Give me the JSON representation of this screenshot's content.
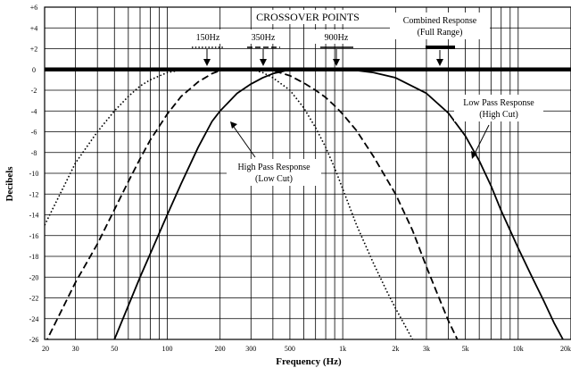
{
  "chart_data": {
    "type": "line",
    "title": "",
    "xlabel": "Frequency (Hz)",
    "ylabel": "Decibels",
    "x_scale": "log",
    "xlim": [
      20,
      20000
    ],
    "ylim": [
      -26,
      6
    ],
    "grid": true,
    "x_ticks": [
      {
        "value": 20,
        "label": "20"
      },
      {
        "value": 30,
        "label": "30"
      },
      {
        "value": 50,
        "label": "50"
      },
      {
        "value": 100,
        "label": "100"
      },
      {
        "value": 200,
        "label": "200"
      },
      {
        "value": 300,
        "label": "300"
      },
      {
        "value": 500,
        "label": "500"
      },
      {
        "value": 1000,
        "label": "1k"
      },
      {
        "value": 2000,
        "label": "2k"
      },
      {
        "value": 3000,
        "label": "3k"
      },
      {
        "value": 5000,
        "label": "5k"
      },
      {
        "value": 10000,
        "label": "10k"
      },
      {
        "value": 20000,
        "label": "20k"
      }
    ],
    "y_ticks": [
      {
        "value": 6,
        "label": "+6"
      },
      {
        "value": 4,
        "label": "+4"
      },
      {
        "value": 2,
        "label": "+2"
      },
      {
        "value": 0,
        "label": "0"
      },
      {
        "value": -2,
        "label": "-2"
      },
      {
        "value": -4,
        "label": "-4"
      },
      {
        "value": -6,
        "label": "-6"
      },
      {
        "value": -8,
        "label": "-8"
      },
      {
        "value": -10,
        "label": "-10"
      },
      {
        "value": -12,
        "label": "-12"
      },
      {
        "value": -14,
        "label": "-14"
      },
      {
        "value": -16,
        "label": "-16"
      },
      {
        "value": -18,
        "label": "-18"
      },
      {
        "value": -20,
        "label": "-20"
      },
      {
        "value": -22,
        "label": "-22"
      },
      {
        "value": -24,
        "label": "-24"
      },
      {
        "value": -26,
        "label": "-26"
      }
    ],
    "series": [
      {
        "style": "dotted",
        "x": [
          20,
          30,
          40,
          50,
          60,
          70,
          80,
          100,
          125,
          150,
          180,
          220,
          260,
          300,
          350,
          400,
          500,
          600,
          700,
          800,
          900,
          1000,
          1200,
          1500,
          1800,
          2000,
          2500,
          3000
        ],
        "y": [
          -15,
          -9,
          -6,
          -4,
          -2.6,
          -1.6,
          -1,
          -0.3,
          0,
          0,
          0,
          0,
          0,
          0,
          -0.3,
          -0.8,
          -2,
          -3.7,
          -5.6,
          -7.5,
          -9.5,
          -11.5,
          -15,
          -18.7,
          -21.5,
          -23,
          -26,
          -28
        ]
      },
      {
        "style": "dashed",
        "x": [
          20,
          30,
          40,
          50,
          60,
          70,
          80,
          100,
          120,
          150,
          180,
          200,
          250,
          300,
          350,
          400,
          500,
          600,
          700,
          800,
          900,
          1000,
          1200,
          1500,
          2000,
          2500,
          3000,
          3500,
          4000,
          4500
        ],
        "y": [
          -26.5,
          -20.5,
          -16.8,
          -13.5,
          -10.8,
          -8.6,
          -6.8,
          -4.3,
          -2.6,
          -1.2,
          -0.4,
          -0.1,
          0,
          0,
          0,
          -0.1,
          -0.6,
          -1.3,
          -2,
          -2.7,
          -3.5,
          -4.3,
          -5.9,
          -8.4,
          -12,
          -15.5,
          -19,
          -21.8,
          -24.2,
          -26
        ]
      },
      {
        "style": "solid",
        "x": [
          50,
          70,
          100,
          120,
          150,
          180,
          200,
          250,
          300,
          350,
          400,
          450,
          500,
          550,
          600,
          700,
          800,
          1000,
          1200,
          1500,
          2000,
          3000,
          4000,
          5000,
          6000,
          7000,
          8000,
          10000,
          12000,
          14000,
          16000,
          18000,
          20000
        ],
        "y": [
          -26,
          -20,
          -14,
          -11,
          -7.5,
          -5,
          -4,
          -2.3,
          -1.4,
          -0.8,
          -0.4,
          -0.2,
          0,
          0,
          0,
          0,
          0,
          0,
          -0.1,
          -0.3,
          -0.8,
          -2.3,
          -4.2,
          -6.4,
          -8.8,
          -11.2,
          -13.6,
          -17.2,
          -20,
          -22.3,
          -24.4,
          -26,
          -27.5
        ]
      },
      {
        "style": "thick",
        "x": [
          20,
          20000
        ],
        "y": [
          0,
          0
        ]
      }
    ],
    "annotations": {
      "crossover_title": "CROSSOVER POINTS",
      "crossover_150": "150Hz",
      "crossover_350": "350Hz",
      "crossover_900": "900Hz",
      "combined_line1": "Combined Response",
      "combined_line2": "(Full Range)",
      "lowpass_line1": "Low Pass Response",
      "lowpass_line2": "(High Cut)",
      "highpass_line1": "High Pass Response",
      "highpass_line2": "(Low Cut)"
    }
  }
}
